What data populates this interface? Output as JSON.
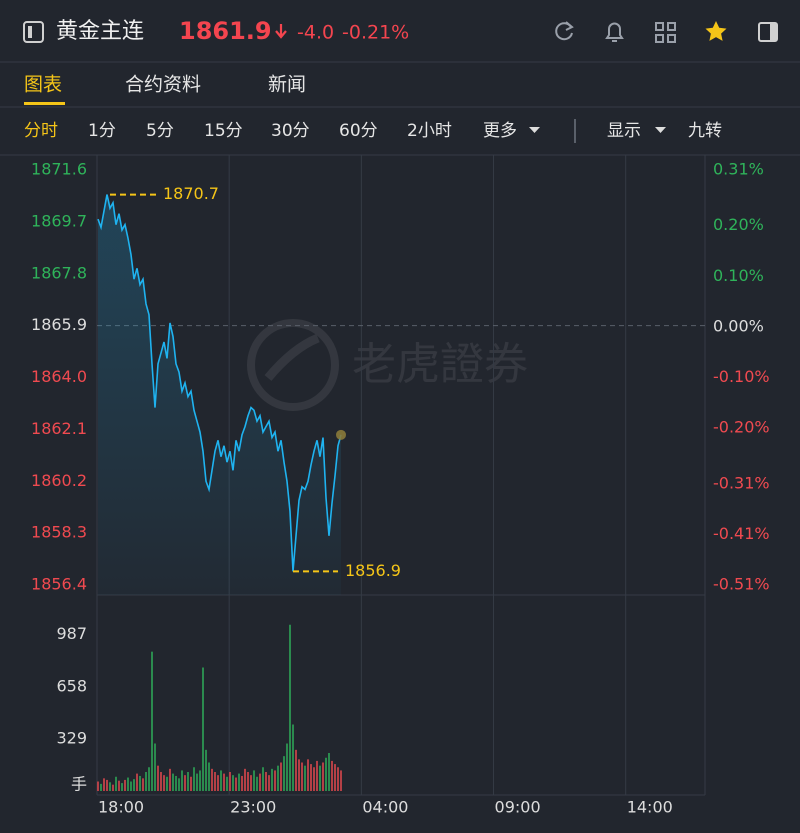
{
  "header": {
    "symbol": "黄金主连",
    "price": "1861.9",
    "change": "-4.0",
    "change_pct": "-0.21%"
  },
  "tabs": [
    "图表",
    "合约资料",
    "新闻"
  ],
  "periods": [
    "分时",
    "1分",
    "5分",
    "15分",
    "30分",
    "60分",
    "2小时",
    "更多"
  ],
  "display_options": [
    "显示",
    "九转"
  ],
  "watermark": "老虎證券",
  "chart_data": [
    {
      "type": "line",
      "color": "#1fb3f0",
      "values": [
        1869.8,
        1869.5,
        1870.1,
        1870.7,
        1870.2,
        1870.4,
        1869.6,
        1870.0,
        1869.4,
        1869.6,
        1869.1,
        1868.5,
        1867.6,
        1868.0,
        1867.4,
        1867.6,
        1866.7,
        1866.3,
        1864.5,
        1862.9,
        1864.5,
        1864.9,
        1865.3,
        1864.7,
        1866.0,
        1865.5,
        1864.5,
        1864.2,
        1863.5,
        1863.8,
        1863.3,
        1863.5,
        1862.8,
        1862.4,
        1862.0,
        1861.3,
        1860.2,
        1859.9,
        1860.6,
        1861.3,
        1861.7,
        1861.1,
        1861.5,
        1860.9,
        1861.3,
        1860.6,
        1861.7,
        1861.3,
        1861.9,
        1862.2,
        1862.6,
        1862.9,
        1862.8,
        1862.4,
        1862.6,
        1862.0,
        1862.2,
        1862.4,
        1861.8,
        1862.0,
        1861.3,
        1861.7,
        1860.9,
        1860.2,
        1859.1,
        1856.9,
        1858.2,
        1859.5,
        1860.0,
        1859.9,
        1860.2,
        1860.8,
        1861.3,
        1861.7,
        1861.1,
        1861.8,
        1859.6,
        1858.2,
        1859.4,
        1860.4,
        1861.5,
        1861.9
      ],
      "ylim": [
        1856.4,
        1871.6
      ],
      "yticks": [
        1871.6,
        1869.7,
        1867.8,
        1865.9,
        {
          "value": 1864,
          "label": "1864.0"
        },
        1862.1,
        1860.2,
        1858.3,
        1856.4
      ],
      "y2lim": [
        -0.51,
        0.31
      ],
      "y2ticks": [
        {
          "value": 0.31,
          "label": "0.31%"
        },
        {
          "value": 0.2,
          "label": "0.20%"
        },
        {
          "value": 0.1,
          "label": "0.10%"
        },
        {
          "value": 0,
          "label": "0.00%"
        },
        {
          "value": -0.1,
          "label": "-0.10%"
        },
        {
          "value": -0.2,
          "label": "-0.20%"
        },
        {
          "value": -0.31,
          "label": "-0.31%"
        },
        {
          "value": -0.41,
          "label": "-0.41%"
        },
        {
          "value": -0.51,
          "label": "-0.51%"
        }
      ],
      "high": 1870.7,
      "low": 1856.9,
      "up_color": "#f04a50",
      "down_color": "#2fb35a",
      "flat_color": "#dddddd",
      "annotation_color": "#f5c518"
    },
    {
      "type": "bar",
      "values": [
        60,
        45,
        80,
        70,
        55,
        40,
        90,
        65,
        50,
        70,
        85,
        60,
        75,
        110,
        95,
        80,
        120,
        150,
        880,
        300,
        160,
        120,
        100,
        90,
        140,
        110,
        95,
        80,
        130,
        100,
        120,
        90,
        150,
        110,
        130,
        780,
        260,
        180,
        140,
        120,
        100,
        130,
        110,
        90,
        120,
        100,
        85,
        110,
        95,
        140,
        120,
        100,
        130,
        90,
        110,
        150,
        120,
        100,
        140,
        130,
        160,
        180,
        220,
        300,
        1050,
        420,
        260,
        200,
        180,
        160,
        200,
        170,
        150,
        190,
        160,
        180,
        210,
        240,
        190,
        170,
        150,
        130
      ],
      "ylim": [
        0,
        1200
      ],
      "yticks": [
        329,
        658,
        987
      ],
      "unit": "手",
      "xticks": [
        "18:00",
        "23:00",
        "04:00",
        "09:00",
        "14:00"
      ],
      "up_color": "#e64a4f",
      "down_color": "#2fae5a"
    }
  ]
}
